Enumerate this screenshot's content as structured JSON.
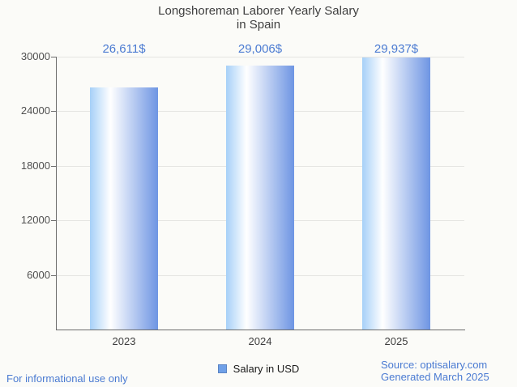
{
  "title": {
    "line1": "Longshoreman Laborer Yearly Salary",
    "line2": "in Spain"
  },
  "chart_data": {
    "type": "bar",
    "title": "Longshoreman Laborer Yearly Salary in Spain",
    "categories": [
      "2023",
      "2024",
      "2025"
    ],
    "values": [
      26611,
      29006,
      29937
    ],
    "value_labels": [
      "26,611$",
      "29,006$",
      "29,937$"
    ],
    "series_name": "Salary in USD",
    "xlabel": "",
    "ylabel": "",
    "ylim": [
      0,
      30000
    ],
    "yticks": [
      6000,
      12000,
      18000,
      24000,
      30000
    ],
    "grid": true,
    "legend_position": "bottom"
  },
  "legend": {
    "label": "Salary in USD"
  },
  "footer": {
    "disclaimer": "For informational use only",
    "source_line1": "Source: optisalary.com",
    "source_line2": "Generated March 2025"
  },
  "colors": {
    "background": "#fbfbf8",
    "title_text": "#3f3f3f",
    "axis_line": "#6b6b6b",
    "gridline": "#e5e5e2",
    "y_tick_text": "#4f4f4f",
    "x_tick_text": "#3d3d3d",
    "value_label_text": "#4b7bd2",
    "footer_text": "#4b7bd2",
    "legend_text": "#1a1a1a",
    "legend_marker_fill": "#6fa0e8",
    "legend_marker_border": "#5b84c4",
    "bar_gradient": [
      "#a6d0f8",
      "#ffffff",
      "#6e95e3"
    ]
  }
}
